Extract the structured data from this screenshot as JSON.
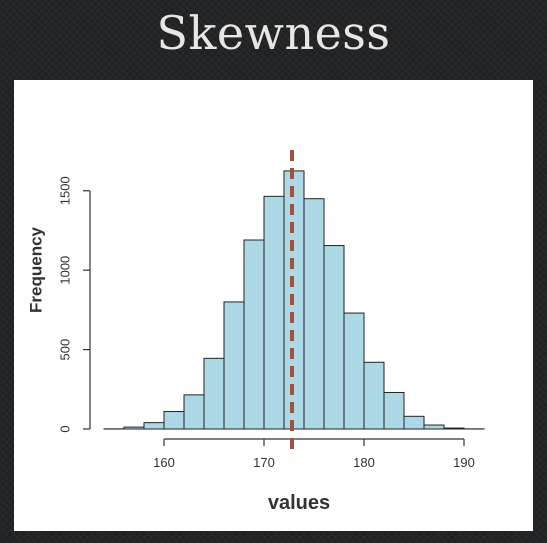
{
  "slide": {
    "title": "Skewness"
  },
  "chart_data": {
    "type": "bar",
    "title": "",
    "xlabel": "values",
    "ylabel": "Frequency",
    "bins": [
      {
        "start": 154,
        "end": 156,
        "count": 1
      },
      {
        "start": 156,
        "end": 158,
        "count": 12
      },
      {
        "start": 158,
        "end": 160,
        "count": 40
      },
      {
        "start": 160,
        "end": 162,
        "count": 110
      },
      {
        "start": 162,
        "end": 164,
        "count": 215
      },
      {
        "start": 164,
        "end": 166,
        "count": 445
      },
      {
        "start": 166,
        "end": 168,
        "count": 800
      },
      {
        "start": 168,
        "end": 170,
        "count": 1190
      },
      {
        "start": 170,
        "end": 172,
        "count": 1465
      },
      {
        "start": 172,
        "end": 174,
        "count": 1625
      },
      {
        "start": 174,
        "end": 176,
        "count": 1450
      },
      {
        "start": 176,
        "end": 178,
        "count": 1155
      },
      {
        "start": 178,
        "end": 180,
        "count": 730
      },
      {
        "start": 180,
        "end": 182,
        "count": 420
      },
      {
        "start": 182,
        "end": 184,
        "count": 230
      },
      {
        "start": 184,
        "end": 186,
        "count": 80
      },
      {
        "start": 186,
        "end": 188,
        "count": 25
      },
      {
        "start": 188,
        "end": 190,
        "count": 6
      },
      {
        "start": 190,
        "end": 192,
        "count": 1
      }
    ],
    "xlim": [
      154,
      192
    ],
    "ylim": [
      0,
      1700
    ],
    "xticks": [
      160,
      170,
      180,
      190
    ],
    "yticks": [
      0,
      500,
      1000,
      1500
    ],
    "mean_line": {
      "x": 172.8,
      "color": "#a0523d",
      "style": "dashed"
    },
    "colors": {
      "bar_fill": "#add8e6",
      "bar_stroke": "#222222",
      "axis": "#333333"
    },
    "grid": false
  }
}
